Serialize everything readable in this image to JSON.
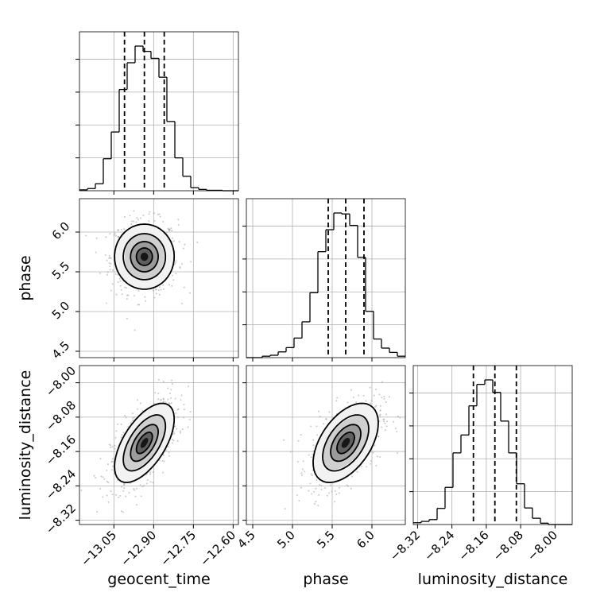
{
  "chart_data": {
    "type": "corner",
    "parameters": [
      "geocent_time",
      "phase",
      "luminosity_distance"
    ],
    "axis_ranges": {
      "geocent_time": [
        -13.18,
        -12.58
      ],
      "phase": [
        4.42,
        6.42
      ],
      "luminosity_distance": [
        -8.33,
        -7.96
      ]
    },
    "ticks": {
      "geocent_time": {
        "values": [
          -13.05,
          -12.9,
          -12.75,
          -12.6
        ],
        "labels": [
          "−13.05",
          "−12.90",
          "−12.75",
          "−12.60"
        ]
      },
      "phase": {
        "values": [
          4.5,
          5.0,
          5.5,
          6.0
        ],
        "labels": [
          "4.5",
          "5.0",
          "5.5",
          "6.0"
        ]
      },
      "luminosity_distance": {
        "values": [
          -8.32,
          -8.24,
          -8.16,
          -8.08,
          -8.0
        ],
        "labels": [
          "−8.32",
          "−8.24",
          "−8.16",
          "−8.08",
          "−8.00"
        ]
      }
    },
    "grid": true,
    "histograms": {
      "geocent_time": {
        "bin_edges": [
          -13.18,
          -13.15,
          -13.12,
          -13.09,
          -13.06,
          -13.03,
          -13.0,
          -12.97,
          -12.94,
          -12.91,
          -12.88,
          -12.85,
          -12.82,
          -12.79,
          -12.76,
          -12.73,
          -12.7,
          -12.67,
          -12.64,
          -12.61,
          -12.58
        ],
        "counts": [
          2,
          5,
          16,
          73,
          134,
          231,
          292,
          330,
          318,
          302,
          259,
          158,
          75,
          33,
          7,
          3,
          1,
          1,
          0,
          0
        ],
        "quantiles": [
          -13.01,
          -12.935,
          -12.86
        ]
      },
      "phase": {
        "bin_edges": [
          4.42,
          4.52,
          4.62,
          4.72,
          4.82,
          4.92,
          5.02,
          5.12,
          5.22,
          5.32,
          5.42,
          5.52,
          5.62,
          5.72,
          5.82,
          5.92,
          6.02,
          6.12,
          6.22,
          6.32,
          6.42
        ],
        "counts": [
          0,
          0,
          3,
          5,
          12,
          21,
          41,
          75,
          136,
          222,
          268,
          303,
          301,
          277,
          210,
          97,
          39,
          20,
          11,
          3
        ],
        "quantiles": [
          5.45,
          5.67,
          5.9
        ]
      },
      "luminosity_distance": {
        "bin_edges": [
          -8.33,
          -8.3115,
          -8.293,
          -8.2745,
          -8.256,
          -8.2375,
          -8.219,
          -8.2005,
          -8.182,
          -8.1635,
          -8.145,
          -8.1265,
          -8.108,
          -8.0895,
          -8.071,
          -8.0525,
          -8.034,
          -8.0155,
          -7.997,
          -7.9785,
          -7.96
        ],
        "counts": [
          4,
          7,
          11,
          36,
          83,
          160,
          200,
          265,
          313,
          323,
          295,
          231,
          160,
          91,
          37,
          14,
          3,
          0,
          0,
          0
        ],
        "quantiles": [
          -8.19,
          -8.14,
          -8.09
        ]
      }
    },
    "densities": {
      "phase_vs_geocent_time": {
        "x_param": "geocent_time",
        "y_param": "phase",
        "center": [
          -12.935,
          5.69
        ],
        "sigma": [
          0.055,
          0.2
        ],
        "rho": 0.0
      },
      "luminosity_distance_vs_geocent_time": {
        "x_param": "geocent_time",
        "y_param": "luminosity_distance",
        "center": [
          -12.935,
          -8.14
        ],
        "sigma": [
          0.055,
          0.045
        ],
        "rho": 0.6
      },
      "luminosity_distance_vs_phase": {
        "x_param": "phase",
        "y_param": "luminosity_distance",
        "center": [
          5.67,
          -8.14
        ],
        "sigma": [
          0.2,
          0.045
        ],
        "rho": 0.5
      }
    }
  }
}
